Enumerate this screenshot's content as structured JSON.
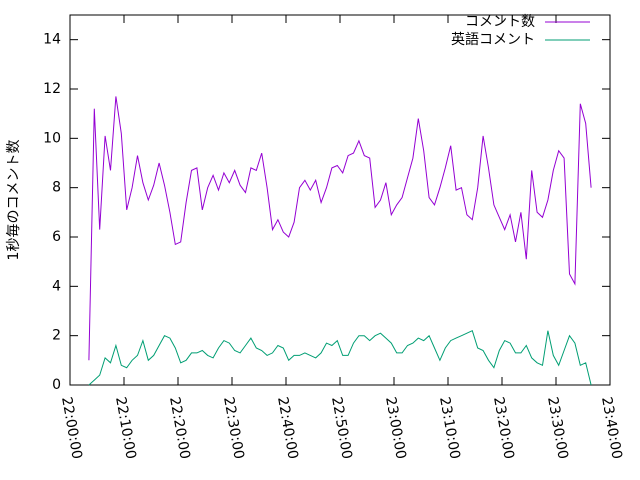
{
  "chart_data": {
    "type": "line",
    "ylabel": "1秒毎のコメント数",
    "x": [
      "22:03:30",
      "22:04:30",
      "22:05:30",
      "22:06:30",
      "22:07:30",
      "22:08:30",
      "22:09:30",
      "22:10:30",
      "22:11:30",
      "22:12:30",
      "22:13:30",
      "22:14:30",
      "22:15:30",
      "22:16:30",
      "22:17:30",
      "22:18:30",
      "22:19:30",
      "22:20:30",
      "22:21:30",
      "22:22:30",
      "22:23:30",
      "22:24:30",
      "22:25:30",
      "22:26:30",
      "22:27:30",
      "22:28:30",
      "22:29:30",
      "22:30:30",
      "22:31:30",
      "22:32:30",
      "22:33:30",
      "22:34:30",
      "22:35:30",
      "22:36:30",
      "22:37:30",
      "22:38:30",
      "22:39:30",
      "22:40:30",
      "22:41:30",
      "22:42:30",
      "22:43:30",
      "22:44:30",
      "22:45:30",
      "22:46:30",
      "22:47:30",
      "22:48:30",
      "22:49:30",
      "22:50:30",
      "22:51:30",
      "22:52:30",
      "22:53:30",
      "22:54:30",
      "22:55:30",
      "22:56:30",
      "22:57:30",
      "22:58:30",
      "22:59:30",
      "23:00:30",
      "23:01:30",
      "23:02:30",
      "23:03:30",
      "23:04:30",
      "23:05:30",
      "23:06:30",
      "23:07:30",
      "23:08:30",
      "23:09:30",
      "23:10:30",
      "23:11:30",
      "23:12:30",
      "23:13:30",
      "23:14:30",
      "23:15:30",
      "23:16:30",
      "23:17:30",
      "23:18:30",
      "23:19:30",
      "23:20:30",
      "23:21:30",
      "23:22:30",
      "23:23:30",
      "23:24:30",
      "23:25:30",
      "23:26:30",
      "23:27:30",
      "23:28:30",
      "23:29:30",
      "23:30:30",
      "23:31:30",
      "23:32:30",
      "23:33:30",
      "23:34:30",
      "23:35:30",
      "23:36:30"
    ],
    "series": [
      {
        "name": "コメント数",
        "color": "#9400d3",
        "values": [
          1.0,
          11.2,
          6.3,
          10.1,
          8.7,
          11.7,
          10.2,
          7.1,
          8.0,
          9.3,
          8.2,
          7.5,
          8.1,
          9.0,
          8.1,
          7.0,
          5.7,
          5.8,
          7.4,
          8.7,
          8.8,
          7.1,
          8.0,
          8.5,
          7.9,
          8.6,
          8.2,
          8.7,
          8.1,
          7.8,
          8.8,
          8.7,
          9.4,
          8.0,
          6.3,
          6.7,
          6.2,
          6.0,
          6.6,
          8.0,
          8.3,
          7.9,
          8.3,
          7.4,
          8.0,
          8.8,
          8.9,
          8.6,
          9.3,
          9.4,
          9.9,
          9.3,
          9.2,
          7.2,
          7.5,
          8.2,
          6.9,
          7.3,
          7.6,
          8.4,
          9.2,
          10.8,
          9.5,
          7.6,
          7.3,
          8.0,
          8.8,
          9.7,
          7.9,
          8.0,
          6.9,
          6.7,
          8.0,
          10.1,
          8.8,
          7.3,
          6.8,
          6.3,
          6.9,
          5.8,
          7.0,
          5.1,
          8.7,
          7.0,
          6.8,
          7.5,
          8.7,
          9.5,
          9.2,
          4.5,
          4.1,
          11.4,
          10.6,
          8.0
        ]
      },
      {
        "name": "英語コメント",
        "color": "#009e73",
        "values": [
          0,
          0.2,
          0.4,
          1.1,
          0.9,
          1.6,
          0.8,
          0.7,
          1.0,
          1.2,
          1.8,
          1.0,
          1.2,
          1.6,
          2.0,
          1.9,
          1.5,
          0.9,
          1.0,
          1.3,
          1.3,
          1.4,
          1.2,
          1.1,
          1.5,
          1.8,
          1.7,
          1.4,
          1.3,
          1.6,
          1.9,
          1.5,
          1.4,
          1.2,
          1.3,
          1.6,
          1.5,
          1.0,
          1.2,
          1.2,
          1.3,
          1.2,
          1.1,
          1.3,
          1.7,
          1.6,
          1.8,
          1.2,
          1.2,
          1.7,
          2.0,
          2.0,
          1.8,
          2.0,
          2.1,
          1.9,
          1.7,
          1.3,
          1.3,
          1.6,
          1.7,
          1.9,
          1.8,
          2.0,
          1.5,
          1.0,
          1.5,
          1.8,
          1.9,
          2.0,
          2.1,
          2.2,
          1.5,
          1.4,
          1.0,
          0.7,
          1.4,
          1.8,
          1.7,
          1.3,
          1.3,
          1.6,
          1.1,
          0.9,
          0.8,
          2.2,
          1.2,
          0.8,
          1.4,
          2.0,
          1.7,
          0.8,
          0.9,
          0
        ]
      }
    ],
    "xlim": [
      "22:00:00",
      "23:40:00"
    ],
    "xticks": [
      "22:00:00",
      "22:10:00",
      "22:20:00",
      "22:30:00",
      "22:40:00",
      "22:50:00",
      "23:00:00",
      "23:10:00",
      "23:20:00",
      "23:30:00",
      "23:40:00"
    ],
    "ylim": [
      0,
      15
    ],
    "yticks": [
      0,
      2,
      4,
      6,
      8,
      10,
      12,
      14
    ],
    "legend": "top-right"
  }
}
